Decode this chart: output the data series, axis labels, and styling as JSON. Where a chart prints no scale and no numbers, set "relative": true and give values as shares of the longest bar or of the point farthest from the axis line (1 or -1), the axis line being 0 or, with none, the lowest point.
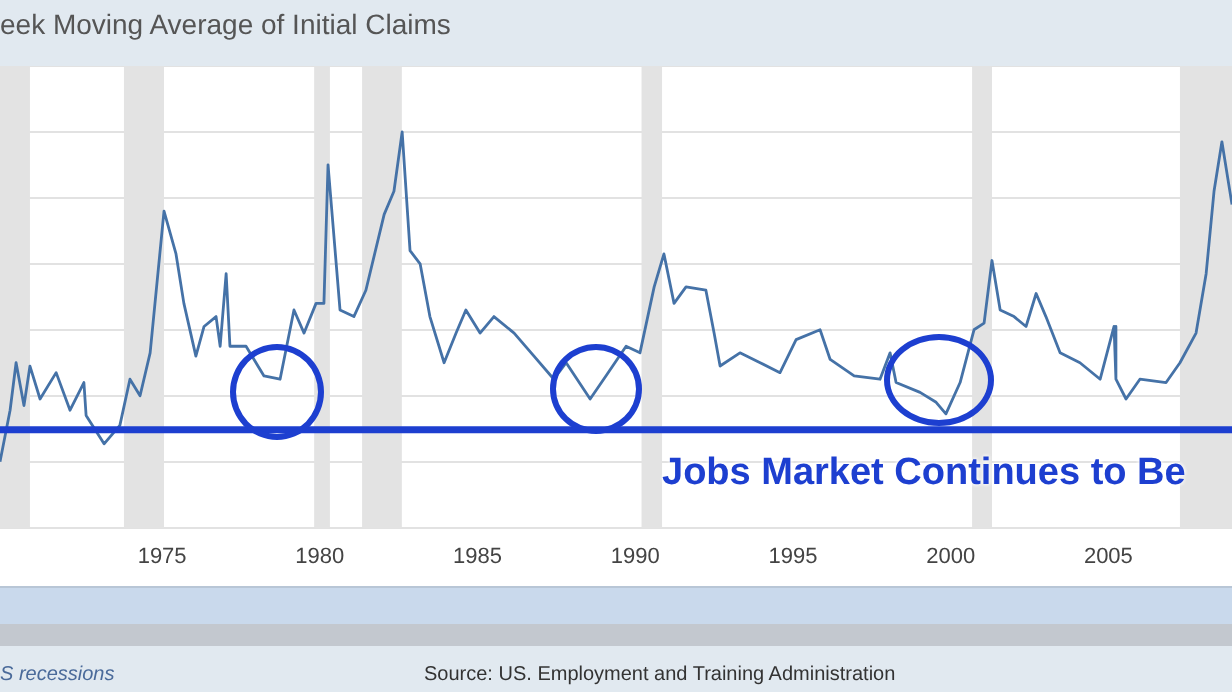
{
  "chart_data": {
    "type": "line",
    "title": "eek Moving Average of Initial Claims",
    "relative": true,
    "grid": "y",
    "x": [
      1969.86,
      1970.18,
      1970.37,
      1970.62,
      1970.81,
      1971.13,
      1971.64,
      1972.08,
      1972.52,
      1972.59,
      1973.16,
      1973.66,
      1973.98,
      1974.3,
      1974.62,
      1975.06,
      1975.44,
      1975.69,
      1976.07,
      1976.33,
      1976.71,
      1976.84,
      1977.03,
      1977.15,
      1977.66,
      1978.23,
      1978.74,
      1979.18,
      1979.5,
      1979.88,
      1980.13,
      1980.26,
      1980.64,
      1981.08,
      1981.46,
      1982.04,
      1982.35,
      1982.61,
      1982.86,
      1983.18,
      1983.49,
      1983.94,
      1984.32,
      1984.63,
      1985.08,
      1985.52,
      1986.16,
      1986.79,
      1987.42,
      1987.81,
      1988.57,
      1989.07,
      1989.71,
      1990.15,
      1990.6,
      1990.91,
      1991.23,
      1991.61,
      1992.24,
      1992.5,
      1992.69,
      1993.32,
      1993.96,
      1994.59,
      1995.1,
      1995.86,
      1996.18,
      1996.94,
      1997.76,
      1998.08,
      1998.27,
      1999.03,
      1999.54,
      1999.85,
      2000.3,
      2000.74,
      2001.06,
      2001.31,
      2001.57,
      2002.01,
      2002.39,
      2002.71,
      2003.02,
      2003.47,
      2004.1,
      2004.74,
      2005.18,
      2005.24,
      2005.56,
      2006.0,
      2006.83,
      2007.27,
      2007.78,
      2008.1,
      2008.35,
      2008.6,
      2008.92
    ],
    "series": [
      {
        "color": "#4572a7",
        "values": [
          0,
          0.156,
          0.3,
          0.17,
          0.29,
          0.19,
          0.27,
          0.156,
          0.24,
          0.14,
          0.054,
          0.11,
          0.25,
          0.2,
          0.33,
          0.76,
          0.63,
          0.48,
          0.32,
          0.41,
          0.44,
          0.35,
          0.57,
          0.35,
          0.35,
          0.26,
          0.25,
          0.46,
          0.39,
          0.48,
          0.48,
          0.9,
          0.46,
          0.44,
          0.52,
          0.75,
          0.82,
          1,
          0.64,
          0.6,
          0.44,
          0.3,
          0.39,
          0.46,
          0.39,
          0.44,
          0.39,
          0.32,
          0.25,
          0.3,
          0.19,
          0.26,
          0.35,
          0.33,
          0.53,
          0.63,
          0.48,
          0.53,
          0.52,
          0.39,
          0.29,
          0.33,
          0.3,
          0.27,
          0.37,
          0.4,
          0.31,
          0.26,
          0.25,
          0.33,
          0.24,
          0.21,
          0.18,
          0.145,
          0.24,
          0.4,
          0.42,
          0.61,
          0.46,
          0.44,
          0.41,
          0.51,
          0.44,
          0.33,
          0.3,
          0.25,
          0.41,
          0.25,
          0.19,
          0.25,
          0.24,
          0.3,
          0.39,
          0.57,
          0.82,
          0.97,
          0.78
        ]
      }
    ],
    "xlim": [
      1969.86,
      2008.92
    ],
    "xticks": [
      1975,
      1980,
      1985,
      1990,
      1995,
      2000,
      2005
    ],
    "bands": [
      {
        "axis": "x",
        "from": 1969.86,
        "to": 1970.81,
        "color": "#e3e3e3"
      },
      {
        "axis": "x",
        "from": 1973.79,
        "to": 1975.06,
        "color": "#e3e3e3"
      },
      {
        "axis": "x",
        "from": 1979.82,
        "to": 1980.32,
        "color": "#e3e3e3"
      },
      {
        "axis": "x",
        "from": 1981.34,
        "to": 1982.6,
        "color": "#e3e3e3"
      },
      {
        "axis": "x",
        "from": 1990.2,
        "to": 1990.85,
        "color": "#e3e3e3"
      },
      {
        "axis": "x",
        "from": 2000.68,
        "to": 2001.31,
        "color": "#e3e3e3"
      },
      {
        "axis": "x",
        "from": 2007.27,
        "to": 2008.92,
        "color": "#e3e3e3"
      }
    ],
    "ref_lines": [
      {
        "axis": "y",
        "value": 0.097,
        "color": "#1d3fd0"
      }
    ],
    "annotations": [
      "Jobs Market Continues to Be",
      "Source: US. Employment and Training Administration",
      "S recessions"
    ]
  }
}
